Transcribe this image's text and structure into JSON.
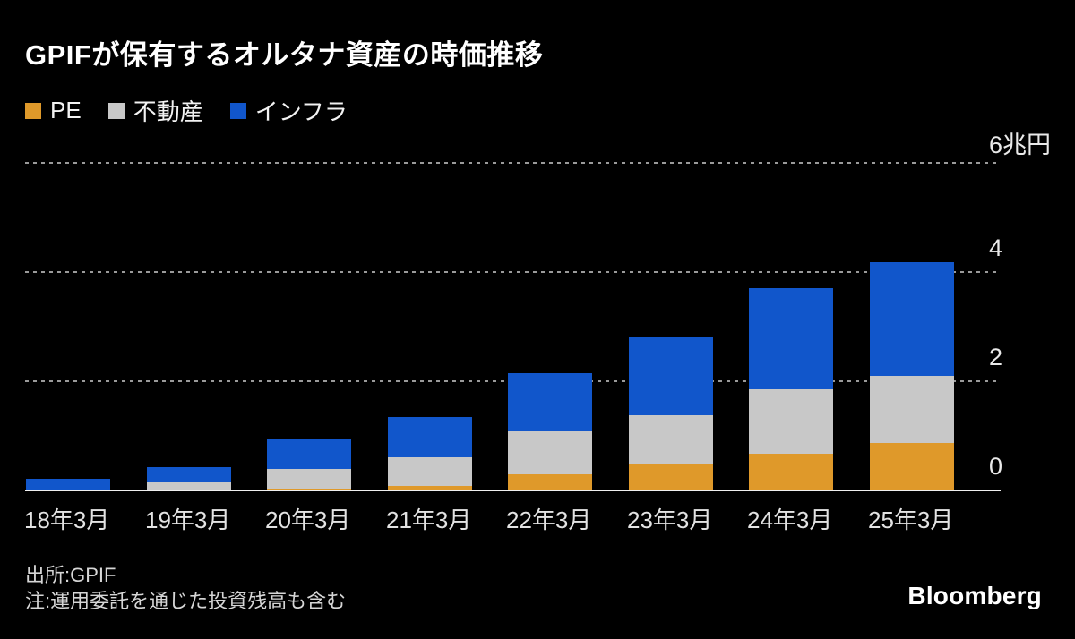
{
  "title": "GPIFが保有するオルタナ資産の時価推移",
  "legend": [
    {
      "label": "PE",
      "color": "#df992a"
    },
    {
      "label": "不動産",
      "color": "#c8c8c8"
    },
    {
      "label": "インフラ",
      "color": "#1156cb"
    }
  ],
  "chart_data": {
    "type": "bar",
    "stacked": true,
    "title": "GPIFが保有するオルタナ資産の時価推移",
    "unit": "兆円",
    "categories": [
      "18年3月",
      "19年3月",
      "20年3月",
      "21年3月",
      "22年3月",
      "23年3月",
      "24年3月",
      "25年3月"
    ],
    "series": [
      {
        "name": "PE",
        "color": "#df992a",
        "values": [
          0.0,
          0.02,
          0.03,
          0.08,
          0.3,
          0.47,
          0.68,
          0.87
        ]
      },
      {
        "name": "不動産",
        "color": "#c8c8c8",
        "values": [
          0.01,
          0.13,
          0.37,
          0.53,
          0.79,
          0.9,
          1.17,
          1.23
        ]
      },
      {
        "name": "インフラ",
        "color": "#1156cb",
        "values": [
          0.2,
          0.27,
          0.53,
          0.73,
          1.06,
          1.45,
          1.85,
          2.08
        ]
      }
    ],
    "ylim": [
      0,
      6
    ],
    "yticks": [
      {
        "value": 0,
        "label": "0"
      },
      {
        "value": 2,
        "label": "2"
      },
      {
        "value": 4,
        "label": "4"
      },
      {
        "value": 6,
        "label": "6兆円"
      }
    ],
    "grid": "horizontal dotted",
    "legend_position": "top-left"
  },
  "footer": {
    "source": "出所:GPIF",
    "note": "注:運用委託を通じた投資残高も含む",
    "brand": "Bloomberg"
  }
}
